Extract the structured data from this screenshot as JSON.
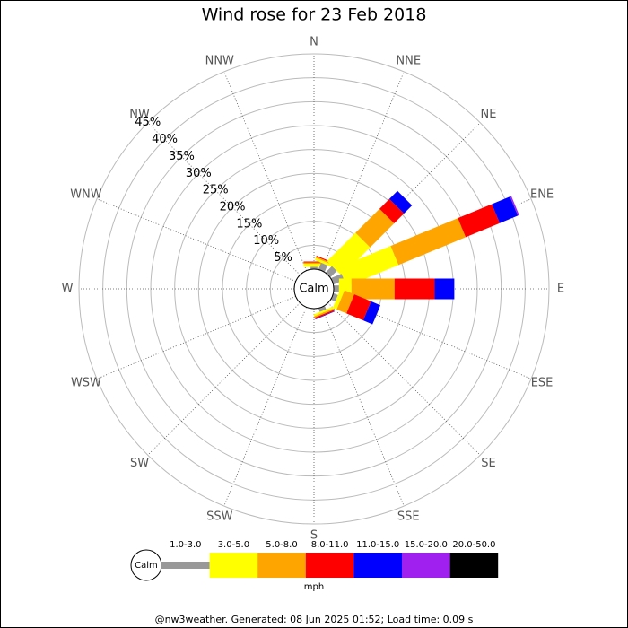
{
  "chart_data": {
    "type": "wind_rose",
    "title": "Wind rose for 23 Feb 2018",
    "directions": [
      "N",
      "NNE",
      "NE",
      "ENE",
      "E",
      "ESE",
      "SE",
      "SSE",
      "S",
      "SSW",
      "SW",
      "WSW",
      "W",
      "WNW",
      "NW",
      "NNW"
    ],
    "series": [
      {
        "name": "1.0-3.0",
        "color": "#999999",
        "values": [
          0.5,
          1.5,
          1.9,
          2.4,
          1.1,
          1.0,
          0,
          0.8,
          0,
          0,
          0,
          0,
          0,
          0,
          0,
          0
        ]
      },
      {
        "name": "3.0-5.0",
        "color": "#ffff00",
        "values": [
          0.6,
          0.5,
          8.4,
          11.7,
          2.6,
          0.9,
          0,
          0.4,
          0,
          0,
          0,
          0,
          0,
          0,
          0,
          0
        ]
      },
      {
        "name": "5.0-8.0",
        "color": "#ffa500",
        "values": [
          0.3,
          0.3,
          7.1,
          15.2,
          9.0,
          2.2,
          0,
          0.3,
          0,
          0,
          0,
          0,
          0,
          0,
          0,
          0
        ]
      },
      {
        "name": "8.0-11.0",
        "color": "#ff0000",
        "values": [
          0.2,
          0.2,
          2.9,
          7.7,
          8.4,
          3.8,
          0,
          0.3,
          0,
          0,
          0,
          0,
          0,
          0,
          0,
          0
        ]
      },
      {
        "name": "11.0-15.0",
        "color": "#0000ff",
        "values": [
          0,
          0,
          2.4,
          4.1,
          4.1,
          2.1,
          0,
          0.1,
          0,
          0,
          0,
          0,
          0,
          0,
          0,
          0
        ]
      },
      {
        "name": "15.0-20.0",
        "color": "#a020f0",
        "values": [
          0,
          0,
          0,
          0.3,
          0,
          0,
          0,
          0,
          0,
          0,
          0,
          0,
          0,
          0,
          0,
          0
        ]
      },
      {
        "name": "20.0-50.0",
        "color": "#000000",
        "values": [
          0,
          0,
          0,
          0,
          0,
          0,
          0,
          0,
          0,
          0,
          0,
          0,
          0,
          0,
          0,
          0
        ]
      }
    ],
    "rlim": [
      0,
      45
    ],
    "rticks": [
      {
        "value": 5,
        "label": "5%"
      },
      {
        "value": 10,
        "label": "10%"
      },
      {
        "value": 15,
        "label": "15%"
      },
      {
        "value": 20,
        "label": "20%"
      },
      {
        "value": 25,
        "label": "25%"
      },
      {
        "value": 30,
        "label": "30%"
      },
      {
        "value": 35,
        "label": "35%"
      },
      {
        "value": 40,
        "label": "40%"
      },
      {
        "value": 45,
        "label": "45%"
      }
    ],
    "calm_label": "Calm",
    "unit": "mph"
  },
  "footer": "@nw3weather. Generated: 08 Jun 2025 01:52; Load time: 0.09 s"
}
